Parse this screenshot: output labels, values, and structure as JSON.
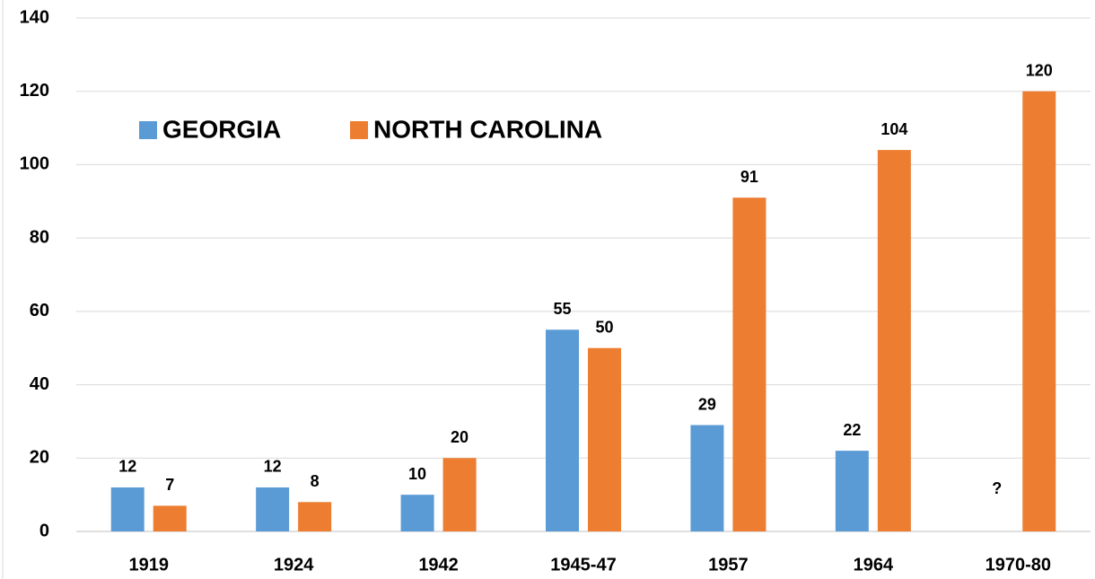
{
  "chart_data": {
    "type": "bar",
    "categories": [
      "1919",
      "1924",
      "1942",
      "1945-47",
      "1957",
      "1964",
      "1970-80"
    ],
    "series": [
      {
        "name": "GEORGIA",
        "color": "#5b9bd5",
        "values": [
          12,
          12,
          10,
          55,
          29,
          22,
          null
        ],
        "value_labels": [
          "12",
          "12",
          "10",
          "55",
          "29",
          "22",
          "?"
        ]
      },
      {
        "name": "NORTH CAROLINA",
        "color": "#ed7d31",
        "values": [
          7,
          8,
          20,
          50,
          91,
          104,
          120
        ]
      }
    ],
    "ylim": [
      0,
      140
    ],
    "yticks": [
      0,
      20,
      40,
      60,
      80,
      100,
      120,
      140
    ],
    "grid": true,
    "legend": "upper left"
  }
}
